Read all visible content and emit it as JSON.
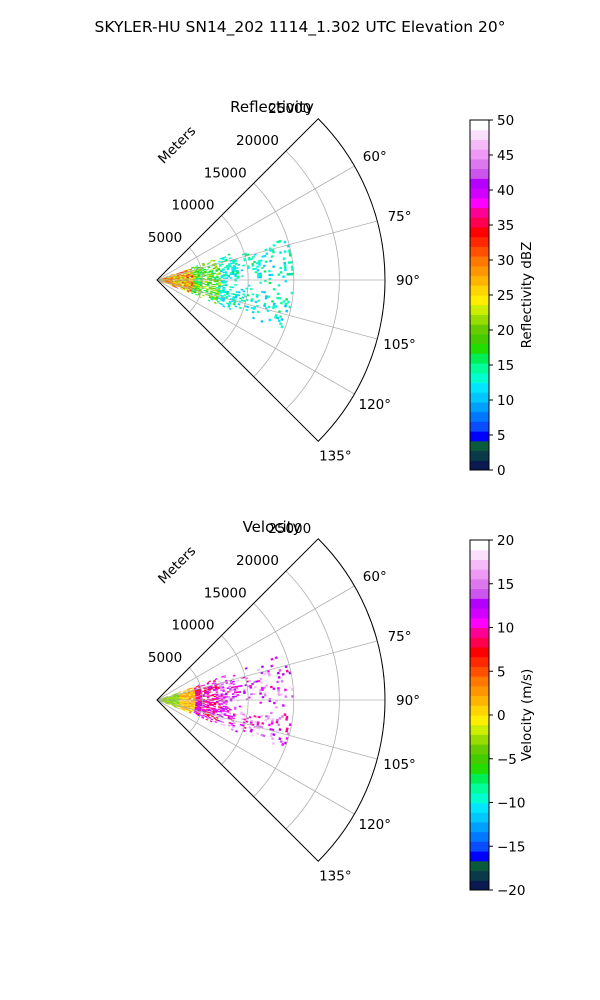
{
  "suptitle": "SKYLER-HU  SN14_202  1114_1.302 UTC Elevation 20°",
  "chart_data": [
    {
      "type": "polar-sector-image",
      "title": "Reflectivity",
      "radial_label": "Meters",
      "r_ticks": [
        5000,
        10000,
        15000,
        20000,
        25000
      ],
      "r_tick_labels": [
        "5000",
        "10000",
        "15000",
        "20000",
        "25000"
      ],
      "r_max": 25000,
      "theta_range_deg": [
        45,
        135
      ],
      "theta_ticks_deg": [
        60,
        75,
        90,
        105,
        120,
        135
      ],
      "theta_tick_labels": [
        "60°",
        "75°",
        "90°",
        "105°",
        "120°",
        "135°"
      ],
      "grid": true,
      "data_extent": {
        "r_max_m": 15000,
        "theta_min_deg": 70,
        "theta_max_deg": 112
      },
      "colorbar": {
        "label": "Reflectivity dBZ",
        "min": 0,
        "max": 50,
        "ticks": [
          0,
          5,
          10,
          15,
          20,
          25,
          30,
          35,
          40,
          45,
          50
        ],
        "tick_labels": [
          "0",
          "5",
          "10",
          "15",
          "20",
          "25",
          "30",
          "35",
          "40",
          "45",
          "50"
        ],
        "colors": [
          "#0a1a50",
          "#0a3a4a",
          "#0c5a3c",
          "#0000ff",
          "#0a4cff",
          "#0078ff",
          "#00a0ff",
          "#00c8ff",
          "#00e6ff",
          "#00ffcc",
          "#00ff99",
          "#00ee55",
          "#22dd00",
          "#44cc00",
          "#66cc00",
          "#99dd00",
          "#ccee00",
          "#ffee00",
          "#ffd400",
          "#ffb400",
          "#ff9600",
          "#ff7800",
          "#ff5000",
          "#ff2800",
          "#ff0000",
          "#ff0050",
          "#ff0096",
          "#ff00ff",
          "#d200ff",
          "#b400ff",
          "#cc55ee",
          "#dd77ee",
          "#ee99f5",
          "#f5bbf8",
          "#fbe0fc",
          "#ffffff"
        ]
      }
    },
    {
      "type": "polar-sector-image",
      "title": "Velocity",
      "radial_label": "Meters",
      "r_ticks": [
        5000,
        10000,
        15000,
        20000,
        25000
      ],
      "r_tick_labels": [
        "5000",
        "10000",
        "15000",
        "20000",
        "25000"
      ],
      "r_max": 25000,
      "theta_range_deg": [
        45,
        135
      ],
      "theta_ticks_deg": [
        60,
        75,
        90,
        105,
        120,
        135
      ],
      "theta_tick_labels": [
        "60°",
        "75°",
        "90°",
        "105°",
        "120°",
        "135°"
      ],
      "grid": true,
      "data_extent": {
        "r_max_m": 15000,
        "theta_min_deg": 70,
        "theta_max_deg": 112
      },
      "colorbar": {
        "label": "Velocity (m/s)",
        "min": -20,
        "max": 20,
        "ticks": [
          -20,
          -15,
          -10,
          -5,
          0,
          5,
          10,
          15,
          20
        ],
        "tick_labels": [
          "−20",
          "−15",
          "−10",
          "−5",
          "0",
          "5",
          "10",
          "15",
          "20"
        ],
        "colors": [
          "#0a1a50",
          "#0a3a4a",
          "#0c5a3c",
          "#0000ff",
          "#0a4cff",
          "#0078ff",
          "#00a0ff",
          "#00c8ff",
          "#00e6ff",
          "#00ffcc",
          "#00ff99",
          "#00ee55",
          "#22dd00",
          "#44cc00",
          "#66cc00",
          "#99dd00",
          "#ccee00",
          "#ffee00",
          "#ffd400",
          "#ffb400",
          "#ff9600",
          "#ff7800",
          "#ff5000",
          "#ff2800",
          "#ff0000",
          "#ff0050",
          "#ff0096",
          "#ff00ff",
          "#d200ff",
          "#b400ff",
          "#cc55ee",
          "#dd77ee",
          "#ee99f5",
          "#f5bbf8",
          "#fbe0fc",
          "#ffffff"
        ]
      }
    }
  ]
}
